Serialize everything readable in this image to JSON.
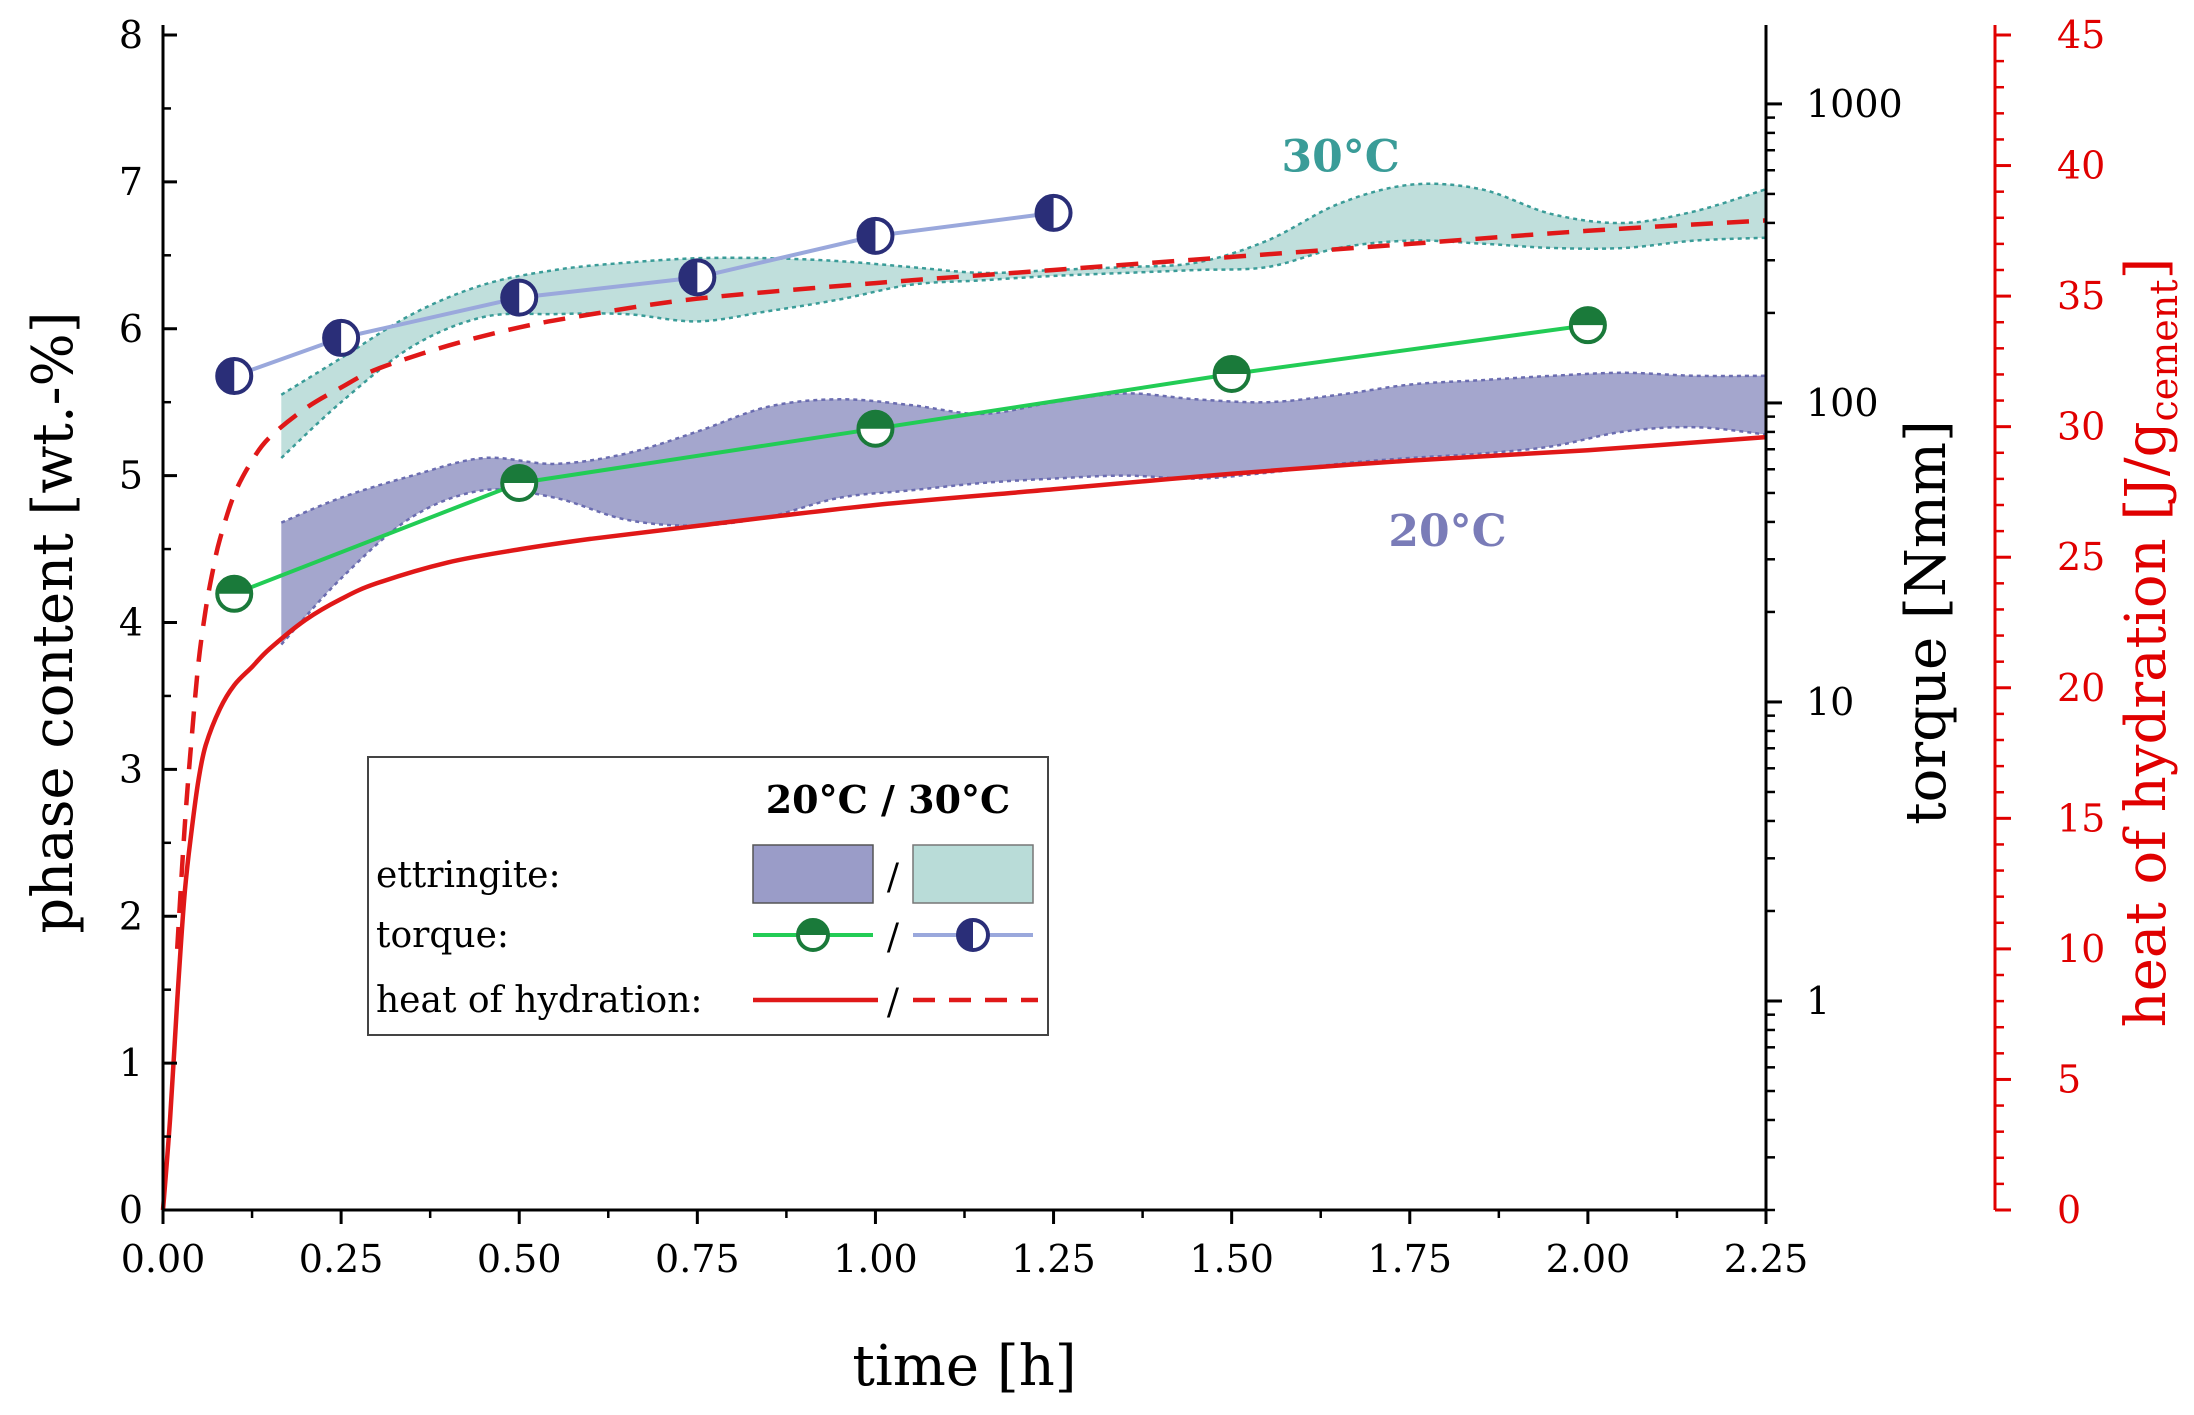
{
  "chart_data": {
    "type": "line",
    "x_axis": {
      "label": "time [h]",
      "range": [
        0,
        2.25
      ],
      "ticks": [
        0,
        0.25,
        0.5,
        0.75,
        1.0,
        1.25,
        1.5,
        1.75,
        2.0,
        2.25
      ],
      "tick_labels": [
        "0.00",
        "0.25",
        "0.50",
        "0.75",
        "1.00",
        "1.25",
        "1.50",
        "1.75",
        "2.00",
        "2.25"
      ]
    },
    "y_axis_left": {
      "label": "phase content [wt.-%]",
      "range": [
        0,
        8
      ],
      "ticks": [
        0,
        1,
        2,
        3,
        4,
        5,
        6,
        7,
        8
      ],
      "tick_labels": [
        "0",
        "1",
        "2",
        "3",
        "4",
        "5",
        "6",
        "7",
        "8"
      ]
    },
    "y_axis_torque": {
      "label": "torque [Nmm]",
      "scale": "log",
      "range": [
        0.2,
        1700
      ],
      "ticks": [
        1,
        10,
        100,
        1000
      ],
      "tick_labels": [
        "1",
        "10",
        "100",
        "1000"
      ]
    },
    "y_axis_heat": {
      "label": "heat of hydration [J/g",
      "label_subscript": "cement",
      "label_end": "]",
      "color": "#e00000",
      "range": [
        0,
        45
      ],
      "ticks": [
        0,
        5,
        10,
        15,
        20,
        25,
        30,
        35,
        40,
        45
      ],
      "tick_labels": [
        "0",
        "5",
        "10",
        "15",
        "20",
        "25",
        "30",
        "35",
        "40",
        "45"
      ]
    },
    "bands": [
      {
        "name": "ettringite 20°C",
        "color": "#9a9cc8",
        "x": [
          0.166,
          0.25,
          0.35,
          0.45,
          0.55,
          0.65,
          0.75,
          0.85,
          0.95,
          1.05,
          1.15,
          1.25,
          1.35,
          1.45,
          1.55,
          1.65,
          1.75,
          1.85,
          1.95,
          2.05,
          2.15,
          2.25
        ],
        "upper": [
          4.68,
          4.85,
          5.0,
          5.12,
          5.08,
          5.15,
          5.3,
          5.47,
          5.52,
          5.48,
          5.42,
          5.5,
          5.56,
          5.52,
          5.5,
          5.55,
          5.62,
          5.65,
          5.68,
          5.7,
          5.68,
          5.68
        ],
        "lower": [
          3.85,
          4.3,
          4.72,
          4.9,
          4.85,
          4.7,
          4.66,
          4.72,
          4.85,
          4.9,
          4.95,
          4.98,
          5.0,
          4.98,
          5.02,
          5.08,
          5.12,
          5.15,
          5.2,
          5.3,
          5.33,
          5.28
        ]
      },
      {
        "name": "ettringite 30°C",
        "color": "#b9dcd8",
        "x": [
          0.166,
          0.25,
          0.35,
          0.45,
          0.55,
          0.65,
          0.75,
          0.85,
          0.95,
          1.05,
          1.15,
          1.25,
          1.35,
          1.45,
          1.55,
          1.65,
          1.75,
          1.85,
          1.95,
          2.05,
          2.15,
          2.25
        ],
        "upper": [
          5.55,
          5.8,
          6.1,
          6.3,
          6.4,
          6.45,
          6.48,
          6.48,
          6.46,
          6.42,
          6.38,
          6.4,
          6.42,
          6.45,
          6.6,
          6.85,
          6.98,
          6.95,
          6.78,
          6.72,
          6.8,
          6.95
        ],
        "lower": [
          5.12,
          5.5,
          5.88,
          6.08,
          6.1,
          6.1,
          6.05,
          6.12,
          6.2,
          6.3,
          6.33,
          6.36,
          6.38,
          6.4,
          6.42,
          6.55,
          6.6,
          6.58,
          6.55,
          6.55,
          6.6,
          6.62
        ]
      }
    ],
    "series": [
      {
        "name": "torque 20°C",
        "axis": "torque",
        "color": "#22cc55",
        "marker_color": "#1a7a3a",
        "marker": "half-bottom",
        "x": [
          0.1,
          0.5,
          1.0,
          1.5,
          2.0
        ],
        "y": [
          23,
          54,
          82,
          125,
          182
        ]
      },
      {
        "name": "torque 30°C",
        "axis": "torque",
        "color": "#9aa8dc",
        "marker_color": "#2a2e78",
        "marker": "half-right",
        "x": [
          0.1,
          0.25,
          0.5,
          0.75,
          1.0,
          1.25
        ],
        "y": [
          123,
          165,
          225,
          263,
          362,
          432
        ]
      },
      {
        "name": "heat of hydration 20°C",
        "axis": "heat",
        "color": "#e01818",
        "dash": "solid",
        "x": [
          0,
          0.01,
          0.02,
          0.03,
          0.04,
          0.05,
          0.06,
          0.08,
          0.1,
          0.125,
          0.15,
          0.2,
          0.25,
          0.3,
          0.4,
          0.5,
          0.6,
          0.75,
          1.0,
          1.25,
          1.5,
          1.75,
          2.0,
          2.25
        ],
        "y": [
          0,
          3.5,
          8,
          12,
          14.5,
          16.5,
          17.8,
          19.2,
          20.1,
          20.8,
          21.5,
          22.6,
          23.4,
          24.0,
          24.8,
          25.3,
          25.7,
          26.2,
          27.0,
          27.6,
          28.2,
          28.7,
          29.1,
          29.6
        ]
      },
      {
        "name": "heat of hydration 30°C",
        "axis": "heat",
        "color": "#e01818",
        "dash": "dashed",
        "x": [
          0.02,
          0.03,
          0.04,
          0.05,
          0.06,
          0.07,
          0.08,
          0.1,
          0.125,
          0.15,
          0.2,
          0.25,
          0.3,
          0.4,
          0.5,
          0.6,
          0.75,
          1.0,
          1.25,
          1.5,
          1.75,
          2.0,
          2.25
        ],
        "y": [
          10,
          14.5,
          18,
          21,
          23,
          24.5,
          25.7,
          27.4,
          28.7,
          29.6,
          30.7,
          31.5,
          32.2,
          33.1,
          33.8,
          34.3,
          34.9,
          35.5,
          36.0,
          36.5,
          37.0,
          37.5,
          37.9
        ]
      }
    ],
    "annotations": [
      {
        "text": "30°C",
        "x": 1.57,
        "y": 7.07,
        "color": "#3a9c98"
      },
      {
        "text": "20°C",
        "x": 1.72,
        "y": 4.52,
        "color": "#7a7cb8"
      }
    ],
    "legend": {
      "placement": "center-left",
      "header": "20°C / 30°C",
      "rows": [
        {
          "label": "ettringite:",
          "separator": "/"
        },
        {
          "label": "torque:",
          "separator": "/"
        },
        {
          "label": "heat of hydration:",
          "separator": "/"
        }
      ]
    }
  }
}
